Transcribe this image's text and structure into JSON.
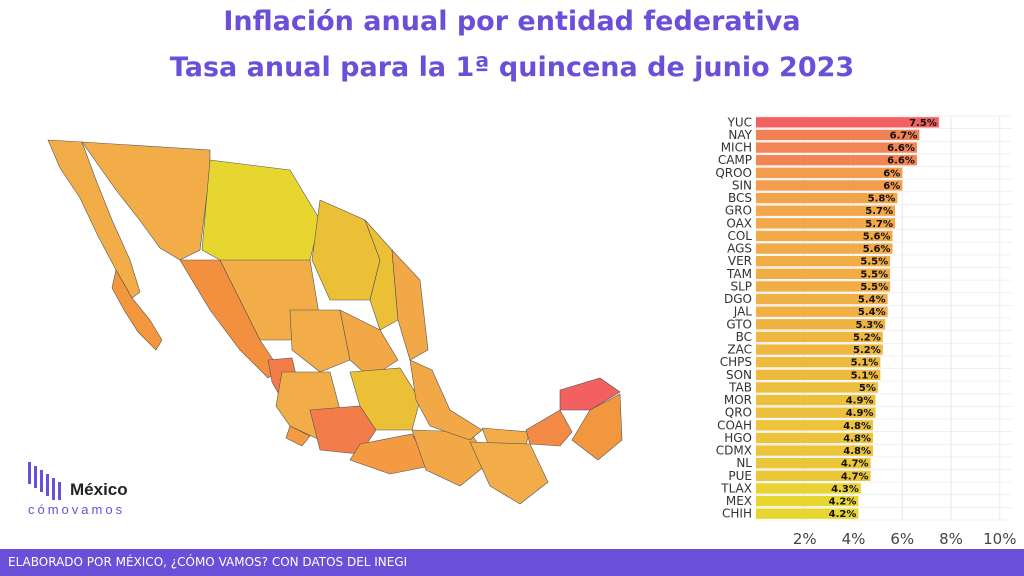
{
  "title": "Inflación anual por entidad federativa",
  "subtitle": "Tasa anual para la 1ª quincena de junio 2023",
  "footer": "ELABORADO POR MÉXICO, ¿CÓMO VAMOS? CON DATOS DEL INEGI",
  "logo": {
    "word1": "México",
    "word2": "cómovamos"
  },
  "colors": {
    "high": "#f26060",
    "mid": "#f3a24a",
    "low": "#e8d630",
    "accent": "#6a4fd8"
  },
  "chart_data": {
    "type": "bar",
    "orientation": "horizontal",
    "categories": [
      "YUC",
      "NAY",
      "MICH",
      "CAMP",
      "QROO",
      "SIN",
      "BCS",
      "GRO",
      "OAX",
      "COL",
      "AGS",
      "VER",
      "TAM",
      "SLP",
      "DGO",
      "JAL",
      "GTO",
      "BC",
      "ZAC",
      "CHPS",
      "SON",
      "TAB",
      "MOR",
      "QRO",
      "COAH",
      "HGO",
      "CDMX",
      "NL",
      "PUE",
      "TLAX",
      "MEX",
      "CHIH"
    ],
    "values": [
      7.5,
      6.7,
      6.6,
      6.6,
      6,
      6,
      5.8,
      5.7,
      5.7,
      5.6,
      5.6,
      5.5,
      5.5,
      5.5,
      5.4,
      5.4,
      5.3,
      5.2,
      5.2,
      5.1,
      5.1,
      5,
      4.9,
      4.9,
      4.8,
      4.8,
      4.8,
      4.7,
      4.7,
      4.3,
      4.2,
      4.2
    ],
    "labels": [
      "7.5%",
      "6.7%",
      "6.6%",
      "6.6%",
      "6%",
      "6%",
      "5.8%",
      "5.7%",
      "5.7%",
      "5.6%",
      "5.6%",
      "5.5%",
      "5.5%",
      "5.5%",
      "5.4%",
      "5.4%",
      "5.3%",
      "5.2%",
      "5.2%",
      "5.1%",
      "5.1%",
      "5%",
      "4.9%",
      "4.9%",
      "4.8%",
      "4.8%",
      "4.8%",
      "4.7%",
      "4.7%",
      "4.3%",
      "4.2%",
      "4.2%"
    ],
    "xticks": [
      "2%",
      "4%",
      "6%",
      "8%",
      "10%"
    ],
    "xtick_values": [
      2,
      4,
      6,
      8,
      10
    ],
    "xlim": [
      0,
      10.5
    ],
    "grid": true
  }
}
